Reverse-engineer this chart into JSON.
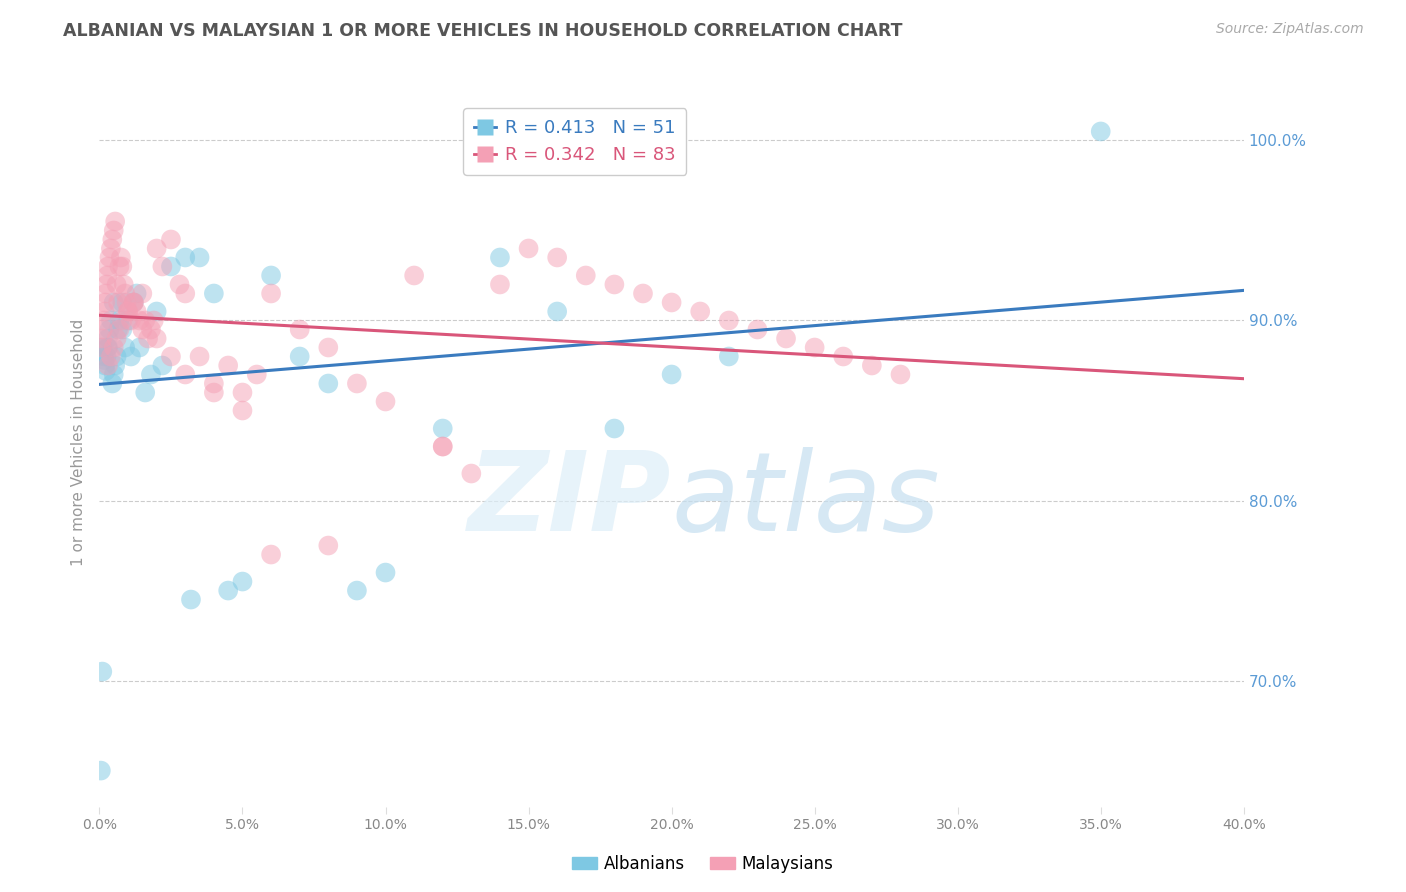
{
  "title": "ALBANIAN VS MALAYSIAN 1 OR MORE VEHICLES IN HOUSEHOLD CORRELATION CHART",
  "source": "Source: ZipAtlas.com",
  "ylabel": "1 or more Vehicles in Household",
  "xlim": [
    0.0,
    40.0
  ],
  "ylim": [
    63.0,
    103.5
  ],
  "albanian_R": 0.413,
  "albanian_N": 51,
  "malaysian_R": 0.342,
  "malaysian_N": 83,
  "albanian_color": "#7ec8e3",
  "malaysian_color": "#f4a0b5",
  "albanian_line_color": "#3a7bbf",
  "malaysian_line_color": "#d9567a",
  "grid_color": "#cccccc",
  "background_color": "#ffffff",
  "title_color": "#555555",
  "source_color": "#aaaaaa",
  "right_tick_color": "#5b9bd5",
  "ytick_labels": [
    "70.0%",
    "80.0%",
    "90.0%",
    "100.0%"
  ],
  "ytick_values": [
    70,
    80,
    90,
    100
  ],
  "xtick_labels": [
    "0.0%",
    "5.0%",
    "10.0%",
    "15.0%",
    "20.0%",
    "25.0%",
    "30.0%",
    "35.0%",
    "40.0%"
  ],
  "xtick_values": [
    0,
    5,
    10,
    15,
    20,
    25,
    30,
    35,
    40
  ],
  "alb_x": [
    0.05,
    0.1,
    0.12,
    0.15,
    0.18,
    0.2,
    0.22,
    0.25,
    0.28,
    0.3,
    0.35,
    0.4,
    0.45,
    0.5,
    0.55,
    0.6,
    0.65,
    0.7,
    0.8,
    0.9,
    1.0,
    1.1,
    1.2,
    1.4,
    1.6,
    1.8,
    2.0,
    2.5,
    3.0,
    3.5,
    4.0,
    4.5,
    5.0,
    6.0,
    7.0,
    8.0,
    9.0,
    10.0,
    12.0,
    14.0,
    16.0,
    18.0,
    20.0,
    22.0,
    1.3,
    2.2,
    3.2,
    0.3,
    0.5,
    0.8,
    35.0
  ],
  "alb_y": [
    65.0,
    70.5,
    88.5,
    88.0,
    87.8,
    87.5,
    87.2,
    88.0,
    88.5,
    89.0,
    89.5,
    90.0,
    86.5,
    87.0,
    87.5,
    88.0,
    89.5,
    90.0,
    91.0,
    88.5,
    90.0,
    88.0,
    91.0,
    88.5,
    86.0,
    87.0,
    90.5,
    93.0,
    93.5,
    93.5,
    91.5,
    75.0,
    75.5,
    92.5,
    88.0,
    86.5,
    75.0,
    76.0,
    84.0,
    93.5,
    90.5,
    84.0,
    87.0,
    88.0,
    91.5,
    87.5,
    74.5,
    88.5,
    91.0,
    89.5,
    100.5
  ],
  "mal_x": [
    0.08,
    0.1,
    0.12,
    0.15,
    0.18,
    0.2,
    0.22,
    0.25,
    0.28,
    0.3,
    0.35,
    0.4,
    0.45,
    0.5,
    0.55,
    0.6,
    0.65,
    0.7,
    0.75,
    0.8,
    0.85,
    0.9,
    0.95,
    1.0,
    1.1,
    1.2,
    1.3,
    1.4,
    1.5,
    1.6,
    1.7,
    1.8,
    1.9,
    2.0,
    2.2,
    2.5,
    2.8,
    3.0,
    3.5,
    4.0,
    4.5,
    5.0,
    5.5,
    6.0,
    7.0,
    8.0,
    9.0,
    10.0,
    11.0,
    12.0,
    13.0,
    14.0,
    15.0,
    16.0,
    17.0,
    18.0,
    19.0,
    20.0,
    21.0,
    22.0,
    23.0,
    24.0,
    25.0,
    26.0,
    27.0,
    28.0,
    0.3,
    0.4,
    0.5,
    0.6,
    0.7,
    0.8,
    1.0,
    1.2,
    1.5,
    2.0,
    2.5,
    3.0,
    4.0,
    5.0,
    6.0,
    8.0,
    12.0
  ],
  "mal_y": [
    88.5,
    89.0,
    89.5,
    90.0,
    90.5,
    91.0,
    91.5,
    92.0,
    92.5,
    93.0,
    93.5,
    94.0,
    94.5,
    95.0,
    95.5,
    92.0,
    91.0,
    93.0,
    93.5,
    93.0,
    92.0,
    91.5,
    91.0,
    90.5,
    90.0,
    91.0,
    90.5,
    90.0,
    89.5,
    90.0,
    89.0,
    89.5,
    90.0,
    94.0,
    93.0,
    94.5,
    92.0,
    91.5,
    88.0,
    86.5,
    87.5,
    86.0,
    87.0,
    91.5,
    89.5,
    88.5,
    86.5,
    85.5,
    92.5,
    83.0,
    81.5,
    92.0,
    94.0,
    93.5,
    92.5,
    92.0,
    91.5,
    91.0,
    90.5,
    90.0,
    89.5,
    89.0,
    88.5,
    88.0,
    87.5,
    87.0,
    87.5,
    88.0,
    88.5,
    89.0,
    89.5,
    90.0,
    90.5,
    91.0,
    91.5,
    89.0,
    88.0,
    87.0,
    86.0,
    85.0,
    77.0,
    77.5,
    83.0
  ]
}
